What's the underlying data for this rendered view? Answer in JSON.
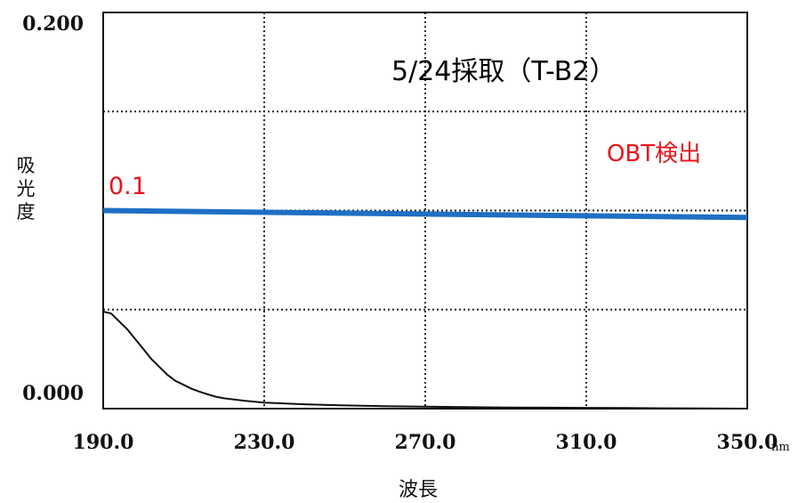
{
  "chart_data": {
    "type": "line",
    "title": "5/24採取（T-B2）",
    "xlabel": "波長",
    "ylabel": "吸光度",
    "x_unit": "nm",
    "xlim": [
      190.0,
      350.0
    ],
    "ylim": [
      0.0,
      0.2
    ],
    "x_tick_labels": [
      "190.0",
      "230.0",
      "270.0",
      "310.0",
      "350.0"
    ],
    "y_tick_labels": [
      "0.200",
      "0.000"
    ],
    "grid": true,
    "series": [
      {
        "x": [
          190,
          192,
          194,
          196,
          198,
          200,
          202,
          204,
          206,
          208,
          210,
          212,
          214,
          216,
          218,
          220,
          225,
          230,
          240,
          250,
          260,
          270,
          280,
          290,
          300,
          310,
          320,
          330,
          340,
          350
        ],
        "y": [
          0.049,
          0.048,
          0.044,
          0.04,
          0.035,
          0.03,
          0.025,
          0.021,
          0.017,
          0.014,
          0.012,
          0.01,
          0.0085,
          0.0072,
          0.006,
          0.0052,
          0.004,
          0.003,
          0.0022,
          0.0016,
          0.0012,
          0.001,
          0.0008,
          0.0006,
          0.0005,
          0.0004,
          0.0003,
          0.0002,
          0.0001,
          0.0
        ],
        "color": "#111111"
      }
    ],
    "reference_line": {
      "label": "0.1",
      "y_start": 0.1,
      "y_end": 0.0965,
      "color": "#1f6fc4"
    },
    "annotation": {
      "text": "OBT検出",
      "color": "#e6141a"
    }
  }
}
